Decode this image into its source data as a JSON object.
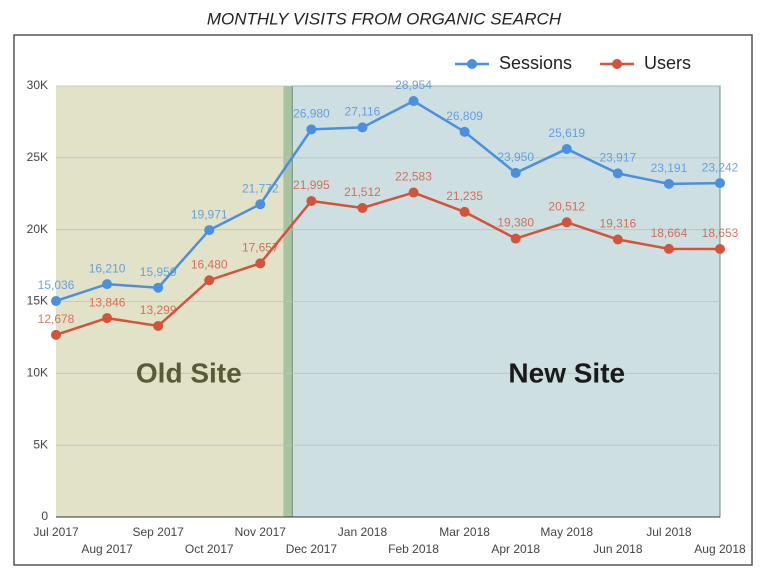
{
  "chart_data": {
    "type": "line",
    "title": "MONTHLY VISITS FROM ORGANIC SEARCH",
    "categories": [
      "Jul 2017",
      "Aug 2017",
      "Sep 2017",
      "Oct 2017",
      "Nov 2017",
      "Dec 2017",
      "Jan 2018",
      "Feb 2018",
      "Mar 2018",
      "Apr 2018",
      "May 2018",
      "Jun 2018",
      "Jul 2018",
      "Aug 2018"
    ],
    "series": [
      {
        "name": "Sessions",
        "color": "#4a8fe0",
        "values": [
          15036,
          16210,
          15959,
          19971,
          21772,
          26980,
          27116,
          28954,
          26809,
          23950,
          25619,
          23917,
          23191,
          23242
        ],
        "value_labels": [
          "15,036",
          "16,210",
          "15,959",
          "19,971",
          "21,772",
          "26,980",
          "27,116",
          "28,954",
          "26,809",
          "23,950",
          "25,619",
          "23,917",
          "23,191",
          "23,242"
        ]
      },
      {
        "name": "Users",
        "color": "#d4533b",
        "values": [
          12678,
          13846,
          13299,
          16480,
          17657,
          21995,
          21512,
          22583,
          21235,
          19380,
          20512,
          19316,
          18664,
          18653
        ],
        "value_labels": [
          "12,678",
          "13,846",
          "13,299",
          "16,480",
          "17,657",
          "21,995",
          "21,512",
          "22,583",
          "21,235",
          "19,380",
          "20,512",
          "19,316",
          "18,664",
          "18,653"
        ]
      }
    ],
    "ylim": [
      0,
      30000
    ],
    "yticks": [
      0,
      {
        "value": 5000,
        "label": "5K"
      },
      {
        "value": 10000,
        "label": "10K"
      },
      {
        "value": 15000,
        "label": "15K"
      },
      {
        "value": 20000,
        "label": "20K"
      },
      {
        "value": 25000,
        "label": "25K"
      },
      {
        "value": 30000,
        "label": "30K"
      }
    ],
    "grid": true,
    "legend": "top-right",
    "annotations": [
      "Old Site",
      "New Site"
    ]
  }
}
